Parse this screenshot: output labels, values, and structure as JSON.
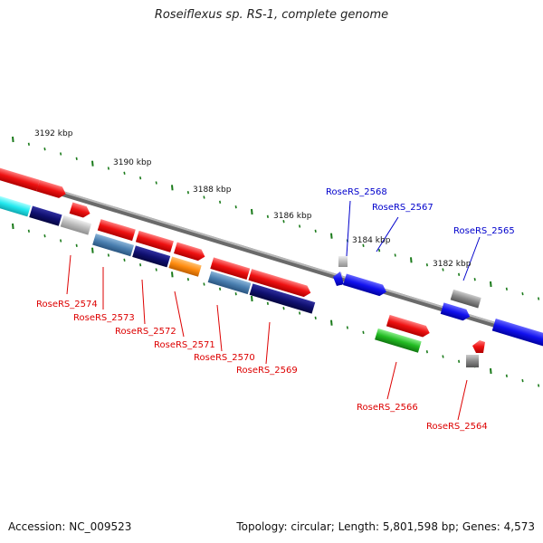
{
  "title": "Roseiflexus sp. RS-1, complete genome",
  "footer": {
    "accession": "Accession: NC_009523",
    "summary": "Topology: circular; Length: 5,801,598 bp; Genes: 4,573"
  },
  "colors": {
    "backbone": "#8a8a8a",
    "tick": "#1a7a1a",
    "tick_label": "#111111",
    "label_red": "#dd0000",
    "label_blue": "#0000cc",
    "gene_red": "#ee1111",
    "gene_blue": "#1111ee",
    "gene_navy": "#101070",
    "gene_steel": "#4a7fb0",
    "gene_cyan": "#22e8ee",
    "gene_orange": "#ff8c10",
    "gene_green": "#22bb22",
    "gene_gray": "#888888",
    "gene_lightgray": "#bbbbbb"
  },
  "position_labels": [
    "3192 kbp",
    "3190 kbp",
    "3188 kbp",
    "3186 kbp",
    "3184 kbp",
    "3182 kbp"
  ],
  "gene_labels_red": [
    "RoseRS_2574",
    "RoseRS_2573",
    "RoseRS_2572",
    "RoseRS_2571",
    "RoseRS_2570",
    "RoseRS_2569",
    "RoseRS_2566",
    "RoseRS_2564"
  ],
  "gene_labels_blue": [
    "RoseRS_2568",
    "RoseRS_2567",
    "RoseRS_2565"
  ],
  "genes": [
    {
      "label": "RoseRS_2574",
      "color": "gene_red",
      "strand": "+"
    },
    {
      "label": "RoseRS_2573",
      "color": "gene_lightgray",
      "strand": "+"
    },
    {
      "label": "RoseRS_2572",
      "color": "gene_navy",
      "strand": "+"
    },
    {
      "label": "RoseRS_2571",
      "color": "gene_orange",
      "strand": "+"
    },
    {
      "label": "RoseRS_2570",
      "color": "gene_steel",
      "strand": "+"
    },
    {
      "label": "RoseRS_2569",
      "color": "gene_navy",
      "strand": "+"
    },
    {
      "label": "RoseRS_2568",
      "color": "gene_blue",
      "strand": "-"
    },
    {
      "label": "RoseRS_2567",
      "color": "gene_blue",
      "strand": "-"
    },
    {
      "label": "RoseRS_2566",
      "color": "gene_red",
      "strand": "+"
    },
    {
      "label": "RoseRS_2565",
      "color": "gene_blue",
      "strand": "-"
    },
    {
      "label": "RoseRS_2564",
      "color": "gene_red",
      "strand": "+"
    }
  ]
}
